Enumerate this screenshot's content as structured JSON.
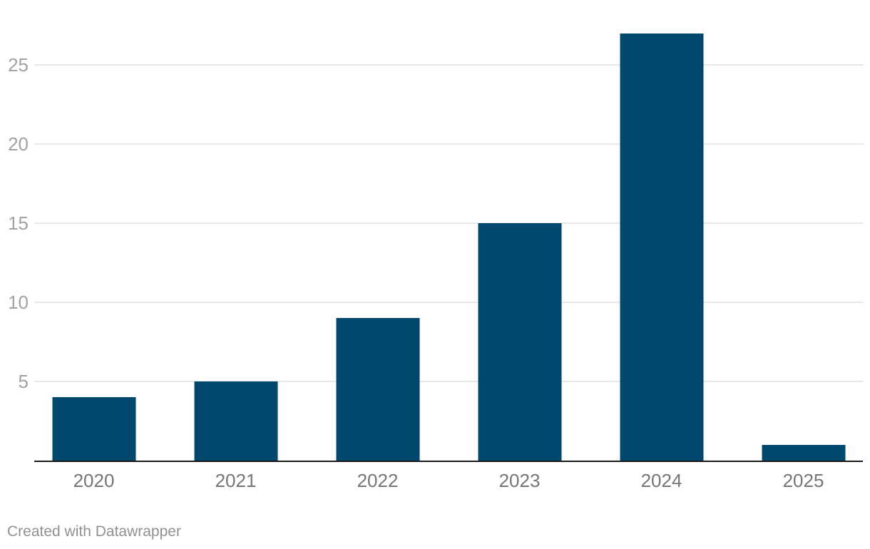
{
  "chart_data": {
    "type": "bar",
    "categories": [
      "2020",
      "2021",
      "2022",
      "2023",
      "2024",
      "2025"
    ],
    "values": [
      4,
      5,
      9,
      15,
      27,
      1
    ],
    "title": "",
    "xlabel": "",
    "ylabel": "",
    "ylim": [
      0,
      27
    ],
    "yticks": [
      5,
      10,
      15,
      20,
      25
    ],
    "grid": true,
    "legend": "none",
    "bar_color": "#00476e",
    "gridline_color": "#e8e8e8",
    "axis_line_color": "#1a1a1a",
    "ytick_color": "#a2a2a2",
    "xtick_color": "#767676"
  },
  "footer": {
    "credit": "Created with Datawrapper"
  }
}
